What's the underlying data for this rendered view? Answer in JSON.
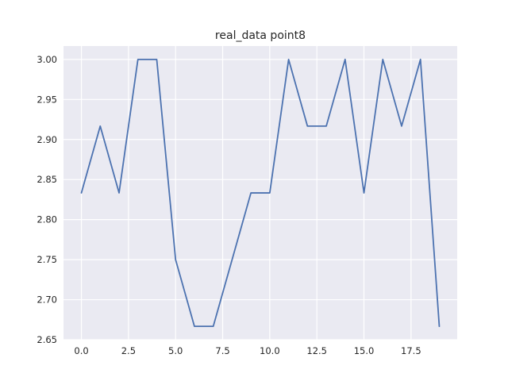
{
  "chart_data": {
    "type": "line",
    "title": "real_data point8",
    "xlabel": "",
    "ylabel": "",
    "x": [
      0,
      1,
      2,
      3,
      4,
      5,
      6,
      7,
      8,
      9,
      10,
      11,
      12,
      13,
      14,
      15,
      16,
      17,
      18,
      19
    ],
    "series": [
      {
        "values": [
          2.8333,
          2.9167,
          2.8333,
          3.0,
          3.0,
          2.75,
          2.6667,
          2.6667,
          2.75,
          2.8333,
          2.8333,
          3.0,
          2.9167,
          2.9167,
          3.0,
          2.8333,
          3.0,
          2.9167,
          3.0,
          2.6667
        ],
        "color": "#4c72b0"
      }
    ],
    "xlim": [
      -0.95,
      19.95
    ],
    "ylim": [
      2.65,
      3.0167
    ],
    "xticks": [
      0.0,
      2.5,
      5.0,
      7.5,
      10.0,
      12.5,
      15.0,
      17.5
    ],
    "xtick_labels": [
      "0.0",
      "2.5",
      "5.0",
      "7.5",
      "10.0",
      "12.5",
      "15.0",
      "17.5"
    ],
    "yticks": [
      2.65,
      2.7,
      2.75,
      2.8,
      2.85,
      2.9,
      2.95,
      3.0
    ],
    "ytick_labels": [
      "2.65",
      "2.70",
      "2.75",
      "2.80",
      "2.85",
      "2.90",
      "2.95",
      "3.00"
    ],
    "grid": true,
    "background": "#eaeaf2",
    "grid_color": "#ffffff"
  }
}
